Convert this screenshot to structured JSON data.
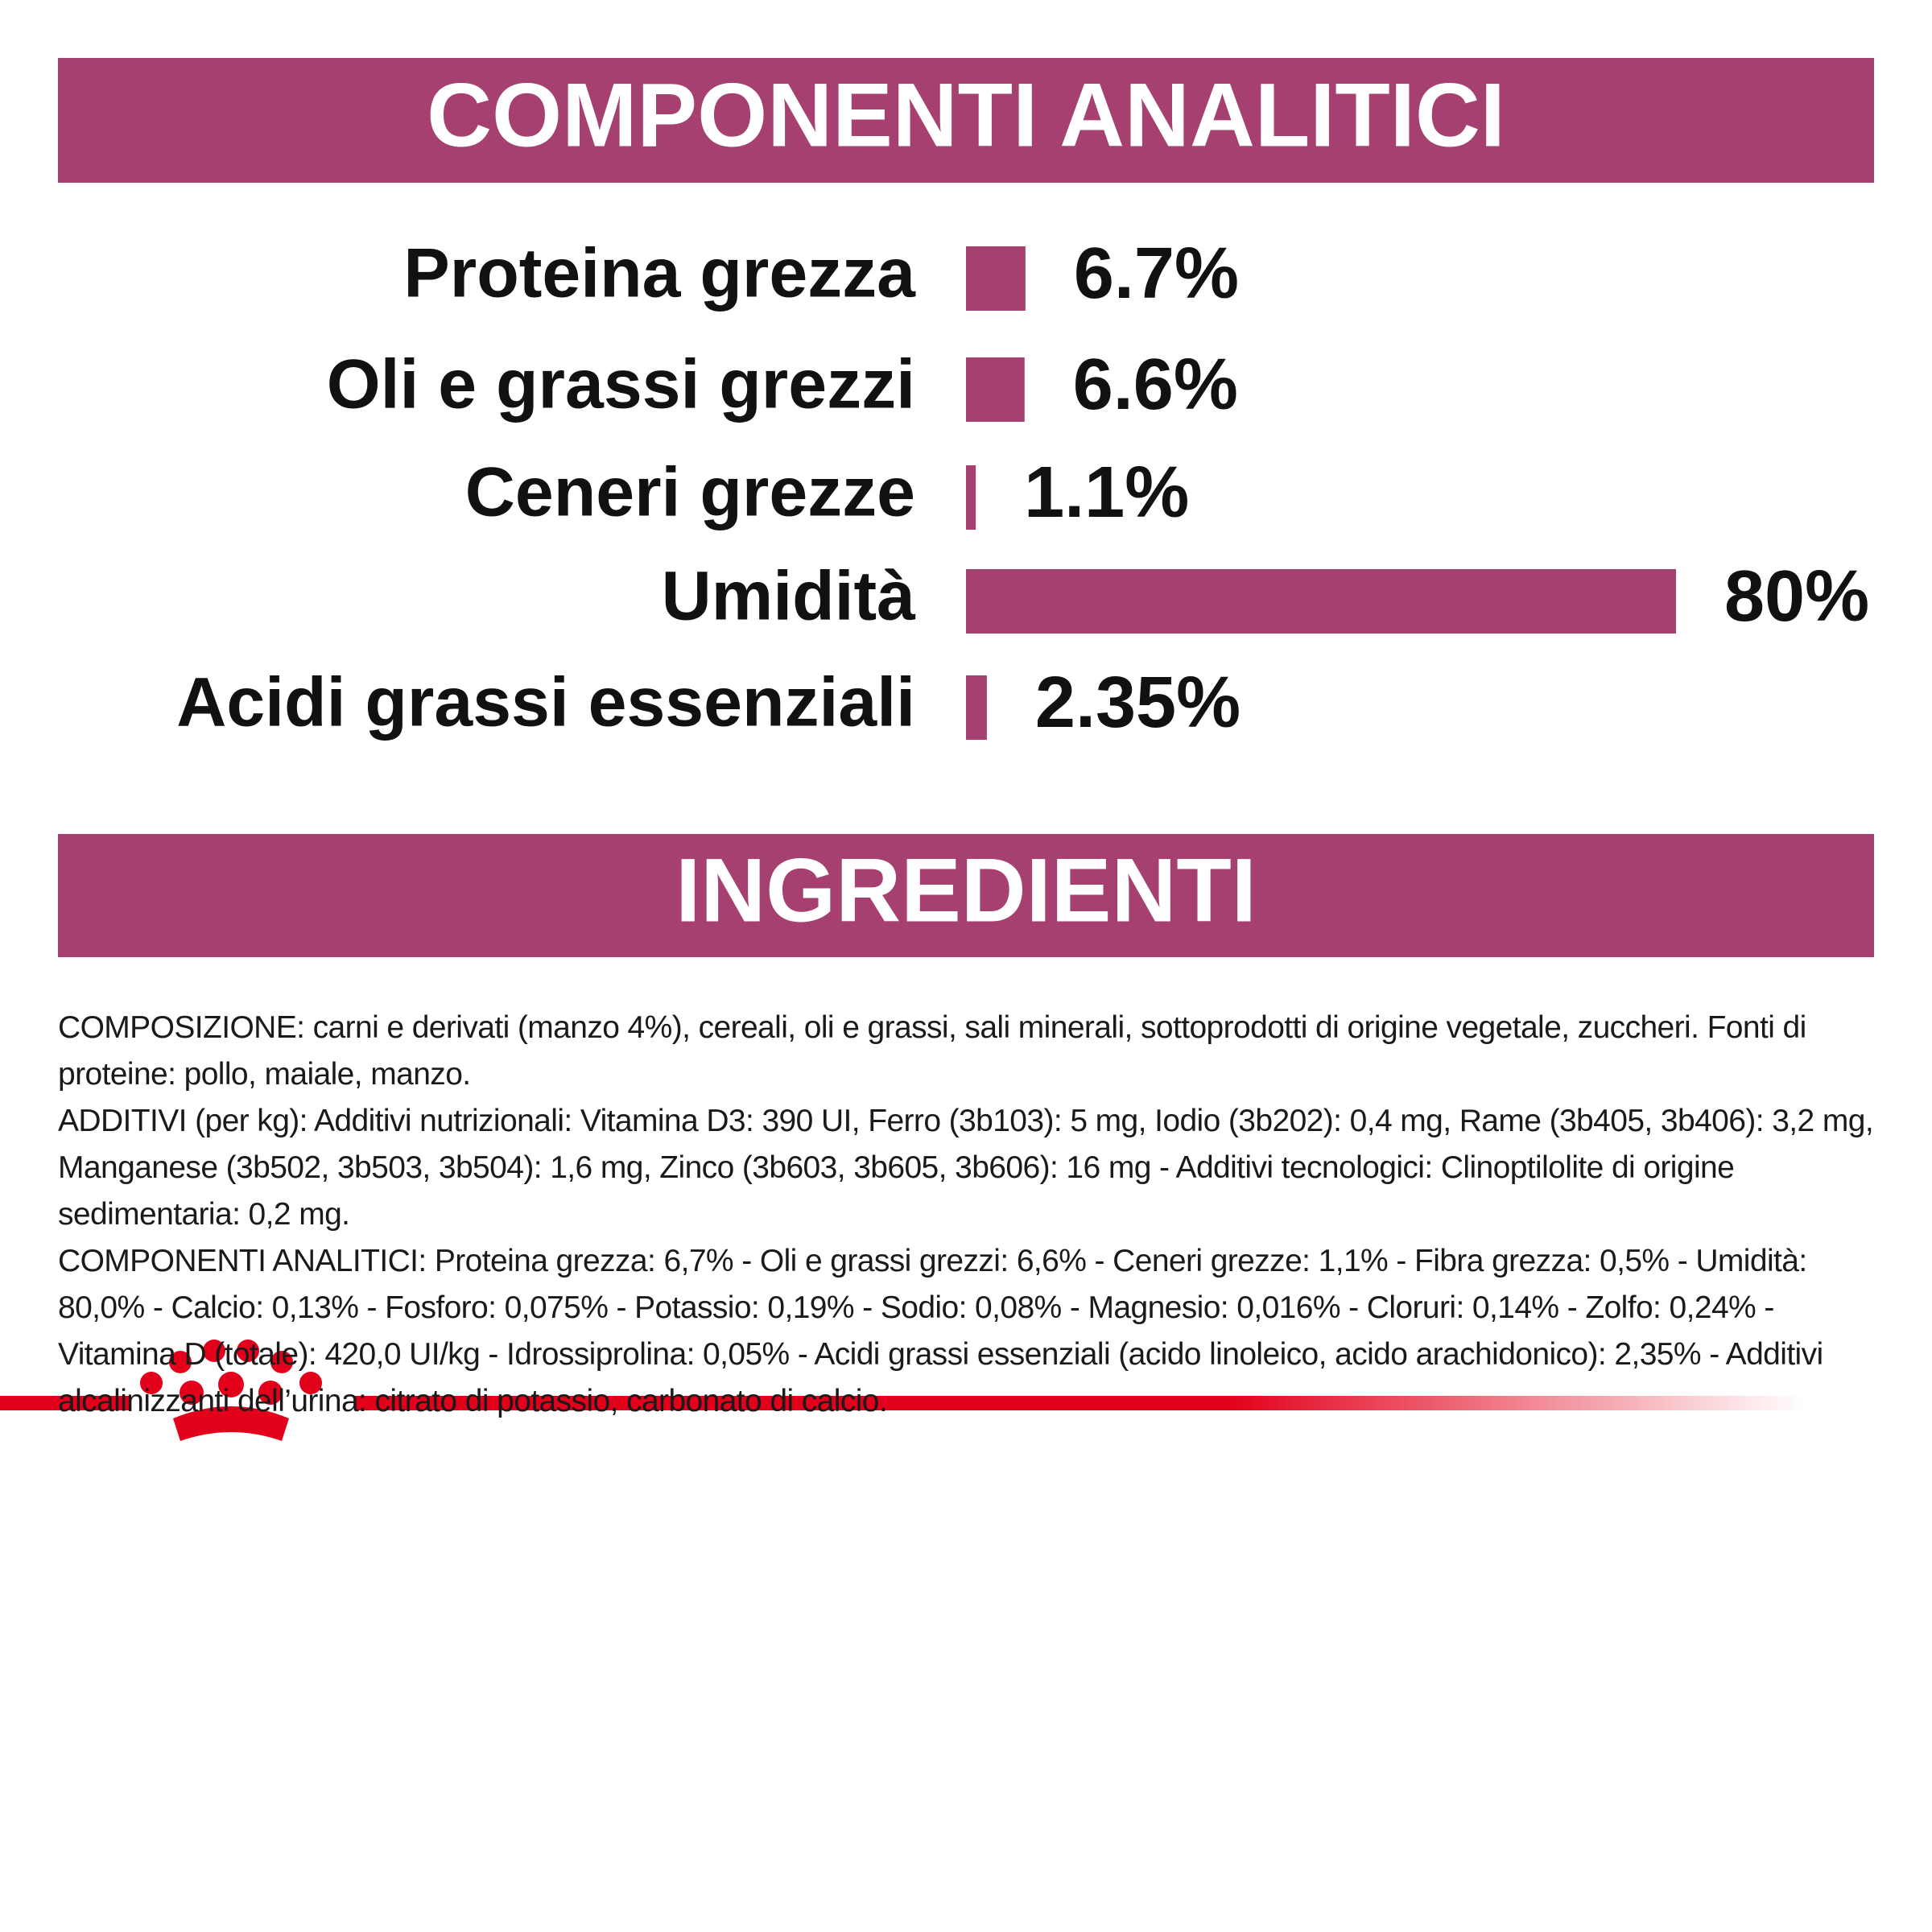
{
  "chart_data": {
    "type": "bar",
    "orientation": "horizontal",
    "title": "COMPONENTI ANALITICI",
    "categories": [
      "Proteina grezza",
      "Oli e grassi grezzi",
      "Ceneri grezze",
      "Umidità",
      "Acidi grassi essenziali"
    ],
    "values": [
      6.7,
      6.6,
      1.1,
      80,
      2.35
    ],
    "value_labels": [
      "6.7%",
      "6.6%",
      "1.1%",
      "80%",
      "2.35%"
    ],
    "color": "#a64070"
  },
  "ingredients": {
    "title": "INGREDIENTI",
    "paragraphs": [
      "COMPOSIZIONE: carni e derivati (manzo 4%), cereali, oli e grassi, sali minerali, sottoprodotti di origine vegetale, zuccheri. Fonti di proteine: pollo, maiale, manzo.",
      "ADDITIVI (per kg): Additivi nutrizionali: Vitamina D3: 390 UI, Ferro (3b103): 5 mg, Iodio (3b202): 0,4 mg, Rame (3b405, 3b406): 3,2 mg, Manganese (3b502, 3b503, 3b504): 1,6 mg, Zinco (3b603, 3b605, 3b606): 16 mg - Additivi tecnologici: Clinoptilolite di origine sedimentaria: 0,2 mg.",
      "COMPONENTI ANALITICI: Proteina grezza: 6,7% - Oli e grassi grezzi: 6,6% - Ceneri grezze: 1,1% - Fibra grezza: 0,5% - Umidità: 80,0% - Calcio: 0,13% - Fosforo: 0,075% - Potassio: 0,19% - Sodio: 0,08% - Magnesio: 0,016% - Cloruri: 0,14% - Zolfo: 0,24% - Vitamina D (totale): 420,0 UI/kg - Idrossiprolina: 0,05% - Acidi grassi essenziali (acido linoleico, acido arachidonico): 2,35% - Additivi alcalinizzanti dell’urina: citrato di potassio, carbonato di calcio."
    ]
  }
}
